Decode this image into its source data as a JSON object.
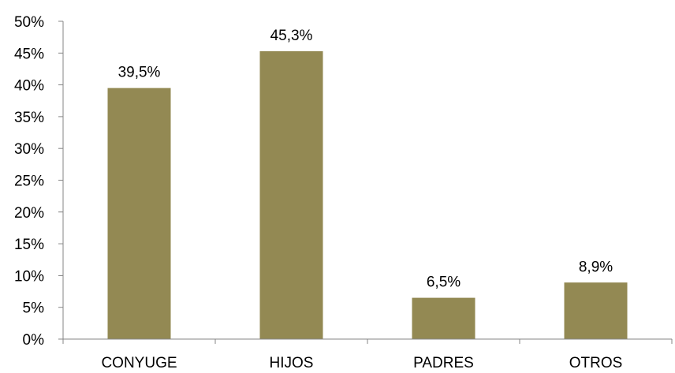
{
  "chart_data": {
    "type": "bar",
    "categories": [
      "CONYUGE",
      "HIJOS",
      "PADRES",
      "OTROS"
    ],
    "values": [
      39.5,
      45.3,
      6.5,
      8.9
    ],
    "data_labels": [
      "39,5%",
      "45,3%",
      "6,5%",
      "8,9%"
    ],
    "y_ticks": [
      "0%",
      "5%",
      "10%",
      "15%",
      "20%",
      "25%",
      "30%",
      "35%",
      "40%",
      "45%",
      "50%"
    ],
    "ylim": [
      0,
      50
    ],
    "y_unit": "%",
    "grid": false,
    "legend": "none",
    "title": "",
    "xlabel": "",
    "ylabel": "",
    "bar_color": "#938953",
    "axis_color": "#868686"
  }
}
